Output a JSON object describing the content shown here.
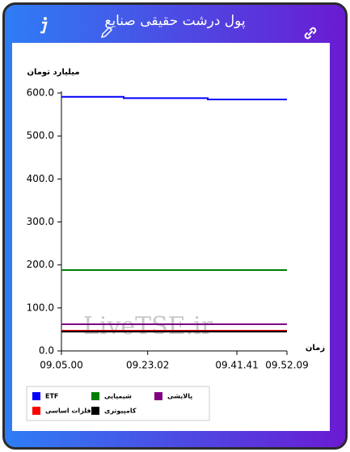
{
  "header": {
    "title": "پول درشت حقیقی صنایع"
  },
  "chart_data": {
    "type": "line",
    "y_label": "میلیارد تومان",
    "x_label": "زمان",
    "watermark": "LiveTSE.ir",
    "x": [
      32700,
      33481,
      33481,
      34536,
      34536,
      35529
    ],
    "xlim": [
      32700,
      35529
    ],
    "xticks": [
      {
        "value": 32700,
        "label": "09.05.00"
      },
      {
        "value": 33782,
        "label": "09.23.02"
      },
      {
        "value": 34901,
        "label": "09.41.41"
      },
      {
        "value": 35529,
        "label": "09.52.09"
      }
    ],
    "ylim": [
      0,
      600
    ],
    "yticks": [
      {
        "value": 0,
        "label": "0.0"
      },
      {
        "value": 100,
        "label": "100.0"
      },
      {
        "value": 200,
        "label": "200.0"
      },
      {
        "value": 300,
        "label": "300.0"
      },
      {
        "value": 400,
        "label": "400.0"
      },
      {
        "value": 500,
        "label": "500.0"
      },
      {
        "value": 600,
        "label": "600.0"
      }
    ],
    "grid": false,
    "series": [
      {
        "name": "ETF",
        "color": "#0000ff",
        "values": [
          591,
          591,
          588,
          588,
          585,
          585
        ]
      },
      {
        "name": "شیمیایی",
        "color": "#008000",
        "values": [
          188,
          188,
          188,
          188,
          188,
          188
        ]
      },
      {
        "name": "پالایشی",
        "color": "#800080",
        "values": [
          62,
          62,
          62,
          62,
          62,
          62
        ]
      },
      {
        "name": "فلزات اساسی",
        "color": "#ff0000",
        "values": [
          47,
          47,
          47,
          47,
          47,
          47
        ]
      },
      {
        "name": "کامپیوتری",
        "color": "#000000",
        "values": [
          45,
          45,
          45,
          45,
          45,
          45
        ]
      }
    ]
  }
}
